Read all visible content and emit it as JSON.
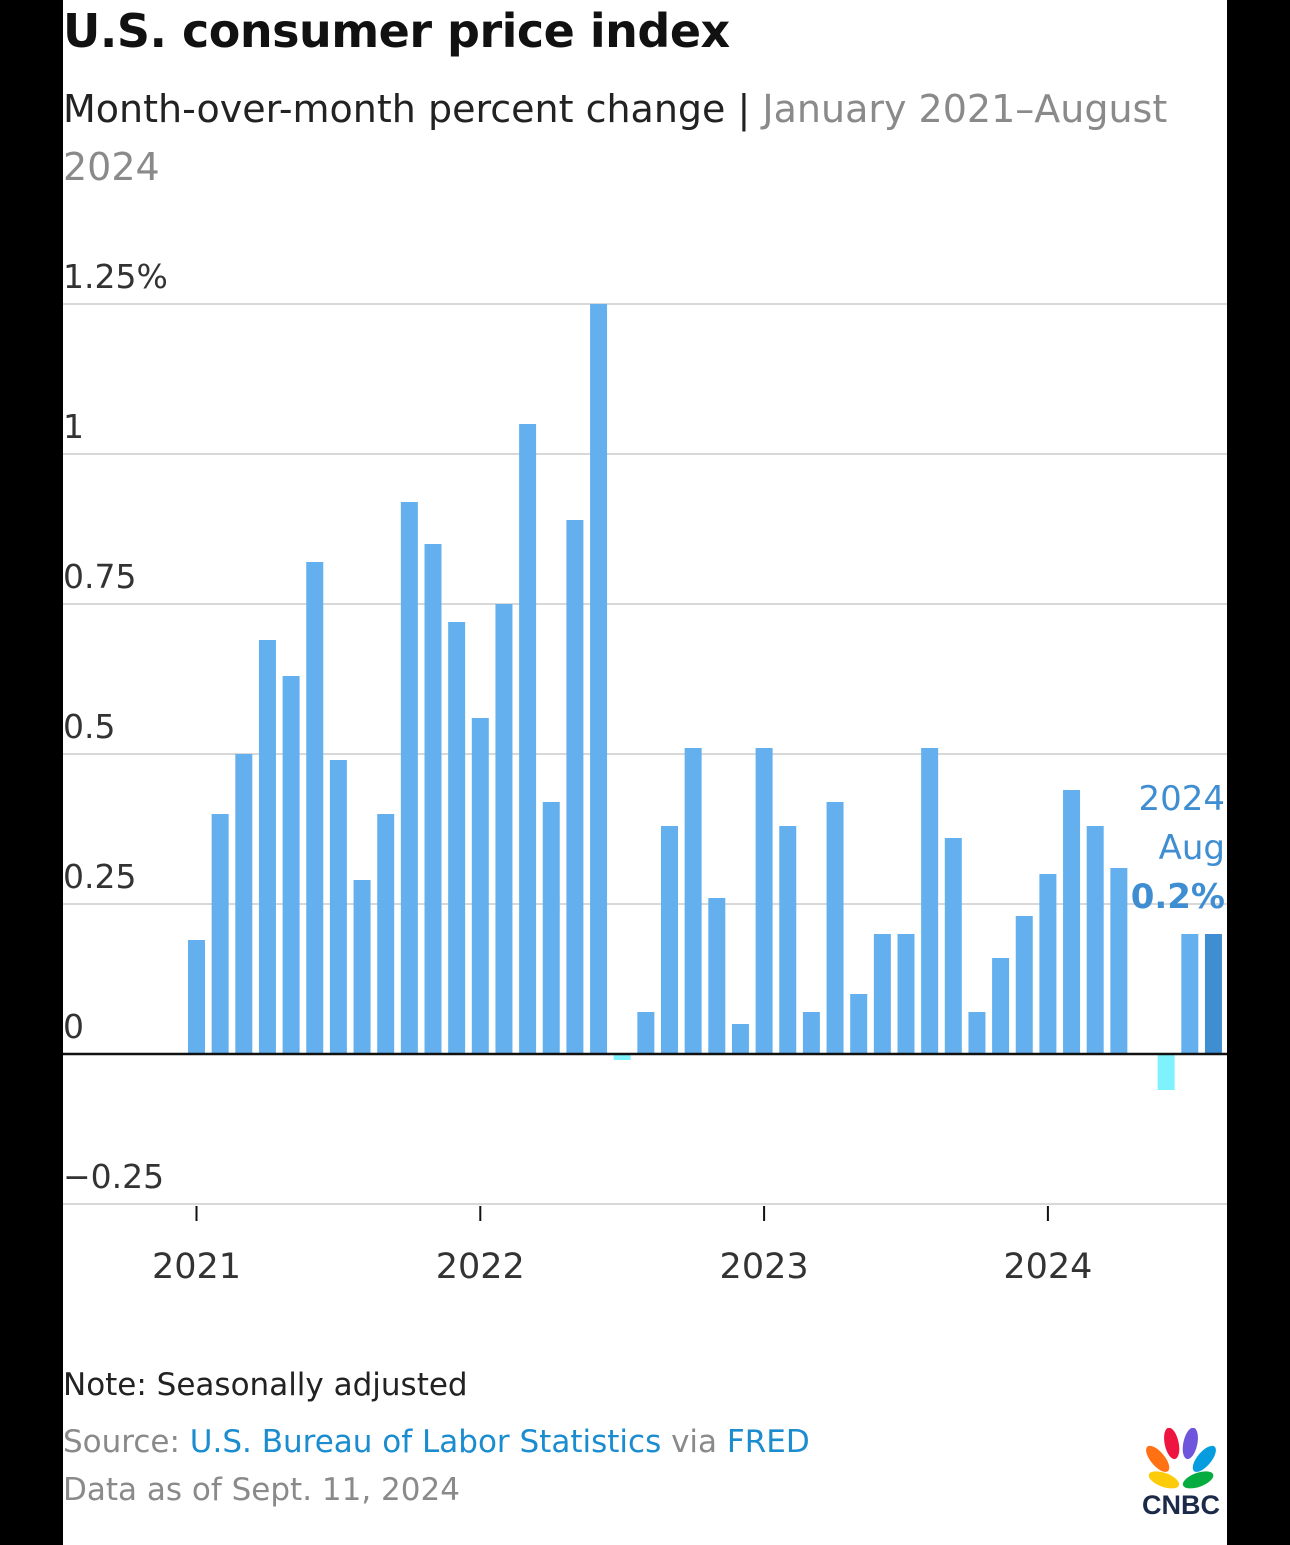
{
  "title": "U.S. consumer price index",
  "subtitle": {
    "main": "Month-over-month percent change |",
    "range": "January 2021–August 2024"
  },
  "note": "Note: Seasonally adjusted",
  "source": {
    "prefix": "Source:",
    "org": "U.S. Bureau of Labor Statistics",
    "via": "via",
    "site": "FRED"
  },
  "asof": "Data as of Sept. 11, 2024",
  "brand": "CNBC",
  "colors": {
    "bar": "#64b0ee",
    "bar_negative": "#7ff2ff",
    "bar_latest": "#3f8ed2",
    "annotation": "#3f8ed2",
    "grid": "#d8d8d8",
    "axis": "#111111"
  },
  "chart_data": {
    "type": "bar",
    "x": [
      "2021-01",
      "2021-02",
      "2021-03",
      "2021-04",
      "2021-05",
      "2021-06",
      "2021-07",
      "2021-08",
      "2021-09",
      "2021-10",
      "2021-11",
      "2021-12",
      "2022-01",
      "2022-02",
      "2022-03",
      "2022-04",
      "2022-05",
      "2022-06",
      "2022-07",
      "2022-08",
      "2022-09",
      "2022-10",
      "2022-11",
      "2022-12",
      "2023-01",
      "2023-02",
      "2023-03",
      "2023-04",
      "2023-05",
      "2023-06",
      "2023-07",
      "2023-08",
      "2023-09",
      "2023-10",
      "2023-11",
      "2023-12",
      "2024-01",
      "2024-02",
      "2024-03",
      "2024-04",
      "2024-05",
      "2024-06",
      "2024-07",
      "2024-08"
    ],
    "values": [
      0.19,
      0.4,
      0.5,
      0.69,
      0.63,
      0.82,
      0.49,
      0.29,
      0.4,
      0.92,
      0.85,
      0.72,
      0.56,
      0.75,
      1.05,
      0.42,
      0.89,
      1.25,
      -0.01,
      0.07,
      0.38,
      0.51,
      0.26,
      0.05,
      0.51,
      0.38,
      0.07,
      0.42,
      0.1,
      0.2,
      0.2,
      0.51,
      0.36,
      0.07,
      0.16,
      0.23,
      0.3,
      0.44,
      0.38,
      0.31,
      0.0,
      -0.06,
      0.2,
      0.2
    ],
    "ylim": [
      -0.25,
      1.25
    ],
    "yticks": [
      -0.25,
      0,
      0.25,
      0.5,
      0.75,
      1,
      1.25
    ],
    "ytick_labels": [
      "−0.25",
      "0",
      "0.25",
      "0.5",
      "0.75",
      "1",
      "1.25%"
    ],
    "xtick_labels": [
      "2021",
      "2022",
      "2023",
      "2024"
    ],
    "grid": true,
    "annotation": {
      "year": "2024",
      "month": "Aug",
      "value": "0.2%"
    }
  }
}
